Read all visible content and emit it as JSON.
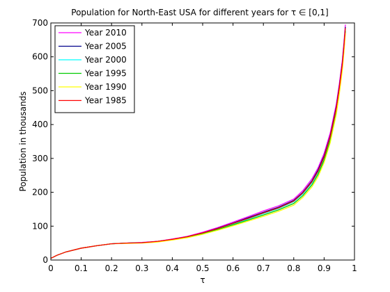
{
  "chart_data": {
    "type": "line",
    "title": "Population for North-East USA for different years for τ ∈ [0,1]",
    "xlabel": "τ",
    "ylabel": "Population in thousands",
    "xlim": [
      0,
      1
    ],
    "ylim": [
      0,
      700
    ],
    "xticks": [
      "0",
      "0.1",
      "0.2",
      "0.3",
      "0.4",
      "0.5",
      "0.6",
      "0.7",
      "0.8",
      "0.9",
      "1"
    ],
    "yticks": [
      "0",
      "100",
      "200",
      "300",
      "400",
      "500",
      "600",
      "700"
    ],
    "grid": false,
    "legend_position": "top-left",
    "x": [
      0,
      0.02,
      0.05,
      0.1,
      0.15,
      0.2,
      0.25,
      0.3,
      0.35,
      0.4,
      0.45,
      0.5,
      0.55,
      0.6,
      0.65,
      0.7,
      0.75,
      0.8,
      0.83,
      0.86,
      0.88,
      0.9,
      0.92,
      0.94,
      0.95,
      0.96,
      0.965,
      0.97
    ],
    "series": [
      {
        "name": "Year 2010",
        "color": "#ff00ff",
        "values": [
          5,
          14,
          24,
          35,
          42,
          48,
          50,
          52,
          55,
          62,
          70,
          82,
          96,
          112,
          128,
          145,
          160,
          180,
          205,
          240,
          272,
          315,
          375,
          460,
          520,
          590,
          640,
          695
        ]
      },
      {
        "name": "Year 2005",
        "color": "#00008b",
        "values": [
          5,
          14,
          24,
          35,
          42,
          48,
          50,
          51,
          55,
          61,
          69,
          80,
          94,
          109,
          125,
          141,
          156,
          176,
          200,
          234,
          266,
          308,
          367,
          452,
          512,
          582,
          632,
          688
        ]
      },
      {
        "name": "Year 2000",
        "color": "#00ffff",
        "values": [
          5,
          14,
          24,
          35,
          42,
          48,
          50,
          51,
          54,
          60,
          68,
          79,
          92,
          106,
          121,
          137,
          152,
          172,
          195,
          228,
          259,
          301,
          360,
          444,
          504,
          575,
          625,
          682
        ]
      },
      {
        "name": "Year 1995",
        "color": "#00cc00",
        "values": [
          5,
          14,
          24,
          35,
          42,
          48,
          50,
          51,
          54,
          60,
          67,
          78,
          90,
          104,
          118,
          133,
          148,
          167,
          190,
          222,
          253,
          295,
          353,
          437,
          497,
          568,
          618,
          676
        ]
      },
      {
        "name": "Year 1990",
        "color": "#ffff00",
        "values": [
          5,
          14,
          24,
          35,
          42,
          48,
          49,
          50,
          53,
          59,
          66,
          76,
          88,
          101,
          115,
          129,
          144,
          162,
          185,
          216,
          246,
          288,
          346,
          430,
          490,
          561,
          611,
          670
        ]
      },
      {
        "name": "Year 1985",
        "color": "#ff0000",
        "values": [
          5,
          14,
          24,
          35,
          42,
          48,
          50,
          51,
          55,
          61,
          69,
          80,
          93,
          108,
          123,
          139,
          154,
          174,
          198,
          231,
          262,
          304,
          364,
          448,
          508,
          578,
          628,
          685
        ]
      }
    ]
  }
}
